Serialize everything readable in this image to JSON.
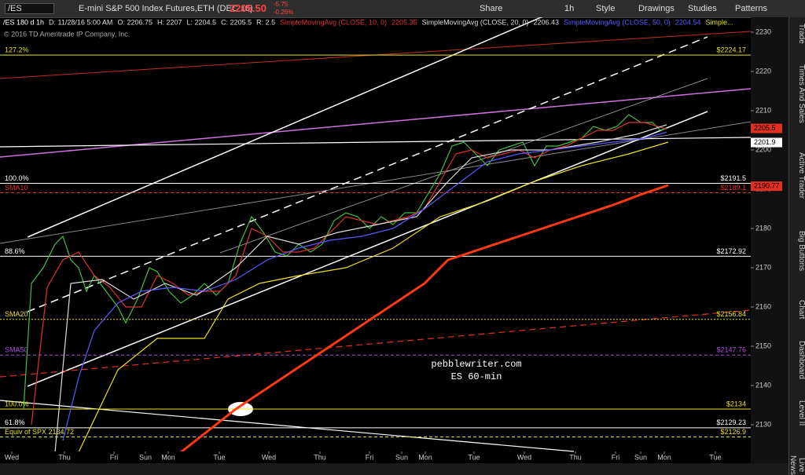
{
  "toolbar": {
    "symbol": "/ES",
    "description": "E-mini S&P 500 Index Futures,ETH (DEC 16)",
    "last": "2205.50",
    "change": "-5.75",
    "change_pct": "-0.26%",
    "buttons": [
      "Share",
      "1h",
      "Style",
      "Drawings",
      "Studies",
      "Patterns"
    ]
  },
  "info_line": [
    "/ES 180 d 1h",
    "D: 11/28/16 5:00 AM",
    "O: 2206.75",
    "H: 2207",
    "L: 2204.5",
    "C: 2205.5",
    "R: 2.5"
  ],
  "study_more": "Simple...",
  "copyright": "© 2016 TD Ameritrade IP Company, Inc.",
  "side_tabs": [
    "Trade",
    "Times And Sales",
    "Active Trader",
    "Big Buttons",
    "Chart",
    "Dashboard",
    "Level II",
    "Live News"
  ],
  "chart_data": {
    "type": "line",
    "annotations": [
      "pebblewriter.com",
      "ES 60-min"
    ],
    "xlim": [
      0,
      955
    ],
    "xticks": [
      {
        "value": 15,
        "label": "Wed"
      },
      {
        "value": 82,
        "label": "Thu"
      },
      {
        "value": 145,
        "label": "Fri"
      },
      {
        "value": 185,
        "label": "Sun"
      },
      {
        "value": 214,
        "label": "Mon"
      },
      {
        "value": 279,
        "label": "Tue"
      },
      {
        "value": 342,
        "label": "Wed"
      },
      {
        "value": 407,
        "label": "Thu"
      },
      {
        "value": 470,
        "label": "Fri"
      },
      {
        "value": 511,
        "label": "Sun"
      },
      {
        "value": 541,
        "label": "Mon"
      },
      {
        "value": 603,
        "label": "Tue"
      },
      {
        "value": 667,
        "label": "Wed"
      },
      {
        "value": 732,
        "label": "Thu"
      },
      {
        "value": 783,
        "label": "Fri"
      },
      {
        "value": 815,
        "label": "Sun"
      },
      {
        "value": 845,
        "label": "Mon"
      },
      {
        "value": 910,
        "label": "Tue"
      }
    ],
    "ylim": [
      2123.2,
      2231.8
    ],
    "yticks": [
      2130,
      2140,
      2150,
      2160,
      2170,
      2180,
      2190,
      2200,
      2210,
      2220,
      2230
    ],
    "series": [
      {
        "color": "#3fbf3f",
        "x": [
          30,
          40,
          55,
          70,
          80,
          90,
          100,
          110,
          120,
          135,
          150,
          160,
          175,
          190,
          200,
          215,
          230,
          245,
          260,
          275,
          290,
          305,
          320,
          335,
          350,
          365,
          380,
          395,
          410,
          425,
          440,
          455,
          470,
          485,
          500,
          515,
          530,
          545,
          560,
          575,
          590,
          605,
          620,
          635,
          650,
          665,
          680,
          695,
          710,
          725,
          740,
          755,
          770,
          785,
          800,
          815,
          830,
          840,
          848
        ],
        "values": [
          2134,
          2166,
          2170,
          2176,
          2178,
          2172,
          2170,
          2164,
          2168,
          2164,
          2160,
          2156,
          2162,
          2170,
          2169,
          2164,
          2161,
          2163,
          2166,
          2163,
          2166,
          2176,
          2183,
          2179,
          2174,
          2173,
          2176,
          2174,
          2176,
          2182,
          2184,
          2183,
          2180,
          2183,
          2181,
          2184,
          2184,
          2189,
          2194,
          2201,
          2202,
          2199,
          2196,
          2200,
          2201,
          2202,
          2196,
          2201,
          2201,
          2202,
          2203,
          2206,
          2205,
          2206,
          2209,
          2207,
          2207,
          2205,
          2205.5
        ]
      },
      {
        "name": "SimpleMovingAvg (CLOSE, 10, 0)",
        "last": 2205.35,
        "color": "#e03030",
        "x": [
          40,
          60,
          80,
          100,
          120,
          140,
          160,
          180,
          200,
          220,
          240,
          260,
          280,
          300,
          320,
          340,
          360,
          380,
          400,
          420,
          440,
          460,
          480,
          500,
          520,
          540,
          560,
          580,
          600,
          620,
          640,
          660,
          680,
          700,
          720,
          740,
          760,
          780,
          800,
          820,
          848
        ],
        "values": [
          2130,
          2165,
          2172,
          2174,
          2168,
          2165,
          2160,
          2160,
          2168,
          2166,
          2163,
          2164,
          2164,
          2168,
          2180,
          2178,
          2174,
          2174,
          2175,
          2179,
          2183,
          2182,
          2181,
          2182,
          2183,
          2185,
          2192,
          2199,
          2200,
          2198,
          2199,
          2200,
          2198,
          2200,
          2201,
          2203,
          2205,
          2205,
          2207,
          2207,
          2205.35
        ]
      },
      {
        "name": "SimpleMovingAvg (CLOSE, 20, 0)",
        "last": 2206.43,
        "color": "#dddddd",
        "x": [
          70,
          90,
          130,
          170,
          210,
          250,
          300,
          340,
          380,
          430,
          480,
          530,
          570,
          600,
          650,
          700,
          760,
          810,
          848
        ],
        "values": [
          2123,
          2166,
          2167,
          2162,
          2166,
          2163,
          2170,
          2178,
          2176,
          2179,
          2181,
          2183,
          2192,
          2198,
          2200,
          2200,
          2202,
          2204,
          2206.43
        ]
      },
      {
        "name": "SimpleMovingAvg (CLOSE, 50, 0)",
        "last": 2204.54,
        "color": "#5a5aff",
        "x": [
          80,
          100,
          120,
          150,
          180,
          220,
          260,
          300,
          340,
          380,
          420,
          460,
          500,
          540,
          580,
          620,
          660,
          700,
          740,
          780,
          820,
          848
        ],
        "values": [
          2126,
          2142,
          2154,
          2161,
          2164,
          2165,
          2164,
          2167,
          2172,
          2175,
          2177,
          2178,
          2180,
          2185,
          2191,
          2197,
          2199,
          2200,
          2201,
          2202,
          2203,
          2204.54
        ]
      },
      {
        "color": "#e8e020",
        "x": [
          100,
          150,
          200,
          260,
          290,
          330,
          380,
          440,
          500,
          560,
          620,
          680,
          740,
          800,
          850
        ],
        "values": [
          2123,
          2144,
          2152,
          2152,
          2162,
          2166,
          2168,
          2170,
          2175,
          2183,
          2187,
          2192,
          2196,
          2199,
          2202
        ]
      },
      {
        "color": "#ff3a10",
        "width": 3,
        "x": [
          230,
          300,
          360,
          420,
          480,
          540,
          570,
          600,
          660,
          720,
          780,
          820,
          850
        ],
        "values": [
          2123,
          2134,
          2142,
          2150,
          2158,
          2166,
          2172,
          2174,
          2178,
          2182,
          2186,
          2189,
          2191
        ]
      }
    ],
    "levels": [
      {
        "value": 2224.17,
        "left_label": "127.2%",
        "right_label": "$2224.17",
        "color": "#e8e020",
        "dash": "none"
      },
      {
        "value": 2191.5,
        "left_label": "100.0%",
        "right_label": "$2191.5",
        "color": "#ffffff",
        "dash": "none"
      },
      {
        "value": 2189.1,
        "left_label": "SMA10",
        "right_label": "$2189.1",
        "color": "#e03030",
        "dash": "4 3"
      },
      {
        "value": 2172.92,
        "left_label": "88.6%",
        "right_label": "$2172.92",
        "color": "#ffffff",
        "dash": "none"
      },
      {
        "value": 2156.84,
        "left_label": "SMA20",
        "right_label": "$2156.84",
        "color": "#e8e020",
        "dash": "2 2"
      },
      {
        "value": 2147.76,
        "left_label": "SMA50",
        "right_label": "$2147.76",
        "color": "#b050e0",
        "dash": "4 3"
      },
      {
        "value": 2134,
        "left_label": "100.0%",
        "right_label": "$2134",
        "color": "#e8e020",
        "dash": "none"
      },
      {
        "value": 2129.23,
        "left_label": "61.8%",
        "right_label": "$2129.23",
        "color": "#ffffff",
        "dash": "none"
      },
      {
        "value": 2126.9,
        "left_label": "Equiv of SPX 2134.72",
        "right_label": "$2126.9",
        "color": "#e8e020",
        "dash": "4 3"
      }
    ],
    "price_tags": [
      {
        "value": 2205.5,
        "label": "2205.5",
        "color": "#e03020"
      },
      {
        "value": 2201.9,
        "label": "2201.9",
        "color": "#ffffff"
      },
      {
        "value": 2190.77,
        "label": "2190.77",
        "color": "#e03020"
      }
    ]
  }
}
